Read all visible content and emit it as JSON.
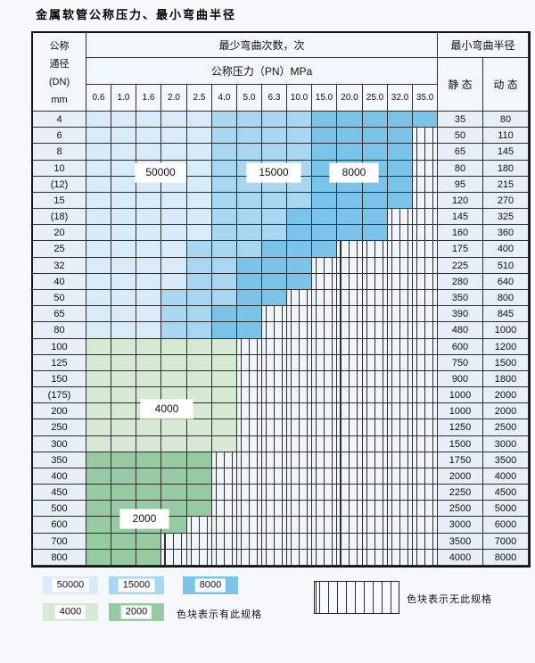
{
  "title": "金属软管公称压力、最小弯曲半径",
  "header": {
    "dn_lines": [
      "公称",
      "通径",
      "(DN)",
      "mm"
    ],
    "cycles_label": "最少弯曲次数，次",
    "pressure_label": "公称压力（PN）MPa",
    "radius_label": "最小弯曲半径",
    "static_label": "静 态",
    "dynamic_label": "动 态",
    "pressures": [
      "0.6",
      "1.0",
      "1.6",
      "2.0",
      "2.5",
      "4.0",
      "5.0",
      "6.3",
      "10.0",
      "15.0",
      "20.0",
      "25.0",
      "32.0",
      "35.0"
    ]
  },
  "rows": [
    {
      "dn": "4",
      "band": "blue",
      "colored": 14,
      "z1": 5,
      "z2": 9,
      "static": "35",
      "dynamic": "80"
    },
    {
      "dn": "6",
      "band": "blue",
      "colored": 13,
      "z1": 5,
      "z2": 9,
      "static": "50",
      "dynamic": "110"
    },
    {
      "dn": "8",
      "band": "blue",
      "colored": 13,
      "z1": 5,
      "z2": 9,
      "static": "65",
      "dynamic": "145"
    },
    {
      "dn": "10",
      "band": "blue",
      "colored": 13,
      "z1": 5,
      "z2": 9,
      "static": "80",
      "dynamic": "180"
    },
    {
      "dn": "(12)",
      "band": "blue",
      "colored": 13,
      "z1": 5,
      "z2": 9,
      "static": "95",
      "dynamic": "215"
    },
    {
      "dn": "15",
      "band": "blue",
      "colored": 13,
      "z1": 5,
      "z2": 9,
      "static": "120",
      "dynamic": "270"
    },
    {
      "dn": "(18)",
      "band": "blue",
      "colored": 12,
      "z1": 5,
      "z2": 8,
      "static": "145",
      "dynamic": "325"
    },
    {
      "dn": "20",
      "band": "blue",
      "colored": 12,
      "z1": 5,
      "z2": 8,
      "static": "160",
      "dynamic": "360"
    },
    {
      "dn": "25",
      "band": "blue",
      "colored": 10,
      "z1": 4,
      "z2": 7,
      "static": "175",
      "dynamic": "400"
    },
    {
      "dn": "32",
      "band": "blue",
      "colored": 9,
      "z1": 4,
      "z2": 6,
      "static": "225",
      "dynamic": "510"
    },
    {
      "dn": "40",
      "band": "blue",
      "colored": 9,
      "z1": 4,
      "z2": 6,
      "static": "280",
      "dynamic": "640"
    },
    {
      "dn": "50",
      "band": "blue",
      "colored": 8,
      "z1": 3,
      "z2": 6,
      "static": "350",
      "dynamic": "800"
    },
    {
      "dn": "65",
      "band": "blue",
      "colored": 7,
      "z1": 3,
      "z2": 5,
      "static": "390",
      "dynamic": "845"
    },
    {
      "dn": "80",
      "band": "blue",
      "colored": 7,
      "z1": 3,
      "z2": 5,
      "static": "480",
      "dynamic": "1000"
    },
    {
      "dn": "100",
      "band": "green-4000",
      "colored": 6,
      "static": "600",
      "dynamic": "1200"
    },
    {
      "dn": "125",
      "band": "green-4000",
      "colored": 6,
      "static": "750",
      "dynamic": "1500"
    },
    {
      "dn": "150",
      "band": "green-4000",
      "colored": 6,
      "static": "900",
      "dynamic": "1800"
    },
    {
      "dn": "(175)",
      "band": "green-4000",
      "colored": 6,
      "static": "1000",
      "dynamic": "2000"
    },
    {
      "dn": "200",
      "band": "green-4000",
      "colored": 6,
      "static": "1000",
      "dynamic": "2000"
    },
    {
      "dn": "250",
      "band": "green-4000",
      "colored": 6,
      "static": "1250",
      "dynamic": "2500"
    },
    {
      "dn": "300",
      "band": "green-4000",
      "colored": 6,
      "static": "1500",
      "dynamic": "3000"
    },
    {
      "dn": "350",
      "band": "green-2000",
      "colored": 5,
      "static": "1750",
      "dynamic": "3500"
    },
    {
      "dn": "400",
      "band": "green-2000",
      "colored": 5,
      "static": "2000",
      "dynamic": "4000"
    },
    {
      "dn": "450",
      "band": "green-2000",
      "colored": 5,
      "static": "2250",
      "dynamic": "4500"
    },
    {
      "dn": "500",
      "band": "green-2000",
      "colored": 5,
      "static": "2500",
      "dynamic": "5000"
    },
    {
      "dn": "600",
      "band": "green-2000",
      "colored": 4,
      "static": "3000",
      "dynamic": "6000"
    },
    {
      "dn": "700",
      "band": "green-2000",
      "colored": 3,
      "static": "3500",
      "dynamic": "7000"
    },
    {
      "dn": "800",
      "band": "green-2000",
      "colored": 3,
      "static": "4000",
      "dynamic": "8000"
    }
  ],
  "cycle_labels": [
    {
      "value": "50000",
      "zone": "blue-50000"
    },
    {
      "value": "15000",
      "zone": "blue-15000"
    },
    {
      "value": "8000",
      "zone": "blue-8000"
    },
    {
      "value": "4000",
      "zone": "green-4000"
    },
    {
      "value": "2000",
      "zone": "green-2000"
    }
  ],
  "legend": {
    "items": [
      {
        "label": "50000",
        "color": "#d8ebf8"
      },
      {
        "label": "15000",
        "color": "#a9d6f0"
      },
      {
        "label": "8000",
        "color": "#7cc3e9"
      },
      {
        "label": "4000",
        "color": "#d8e9d3"
      },
      {
        "label": "2000",
        "color": "#96cba1"
      }
    ],
    "has_spec_text": "色块表示有此规格",
    "no_spec_text": "色块表示无此规格"
  },
  "colors": {
    "blue_50000": "#d8ebf8",
    "blue_15000": "#a9d6f0",
    "blue_8000": "#7cc3e9",
    "green_4000": "#d8e9d3",
    "green_2000": "#96cba1",
    "label_cell_bg": "#e6eff8",
    "hatch_bg": "#f0f5fa",
    "grid_line": "#2f2f2f"
  }
}
